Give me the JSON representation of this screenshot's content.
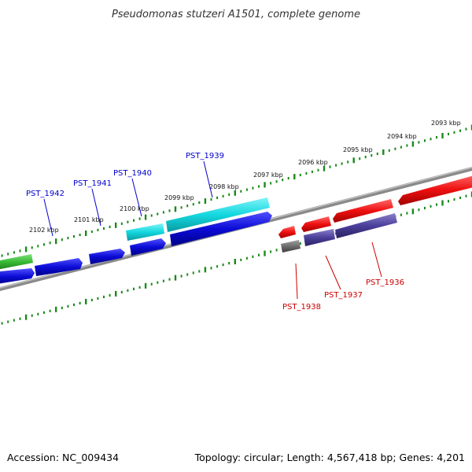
{
  "title": "Pseudomonas stutzeri A1501, complete genome",
  "footer": {
    "accession": "Accession: NC_009434",
    "summary": "Topology: circular; Length: 4,567,418 bp; Genes: 4,201"
  },
  "ruler_labels": [
    "2093 kbp",
    "2094 kbp",
    "2095 kbp",
    "2096 kbp",
    "2097 kbp",
    "2098 kbp",
    "2099 kbp",
    "2100 kbp",
    "2101 kbp",
    "2102 kbp"
  ],
  "gene_labels": {
    "top": [
      "PST_1939",
      "PST_1940",
      "PST_1941",
      "PST_1942"
    ],
    "bottom": [
      "PST_1936",
      "PST_1937",
      "PST_1938"
    ]
  },
  "colors": {
    "backbone": "#8a8a8a",
    "ruler_ticks": "#1a8a1a",
    "label_top": "#0000cc",
    "label_bottom": "#cc0000",
    "gene_blue": "#0b0bd6",
    "gene_cyan": "#14d7df",
    "gene_green": "#36b832",
    "gene_red": "#ee1010",
    "gene_purple": "#4a3f9a",
    "gene_gray": "#6e6e6e"
  }
}
